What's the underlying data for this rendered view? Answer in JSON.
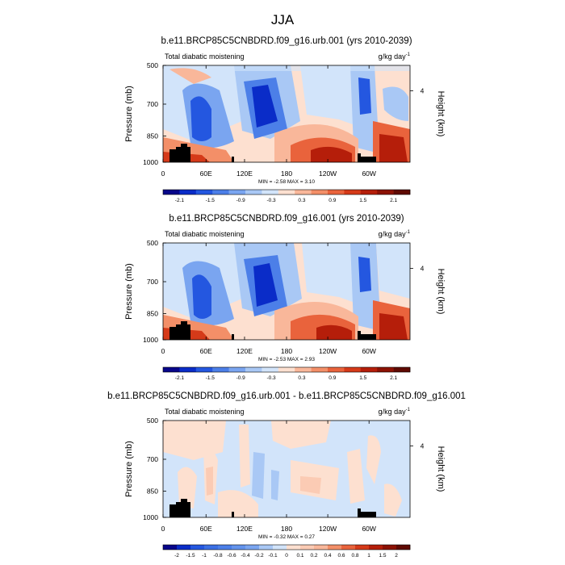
{
  "page_title": "JJA",
  "chart_data": [
    {
      "type": "heatmap",
      "title": "b.e11.BRCP85C5CNBDRD.f09_g16.urb.001 (yrs 2010-2039)",
      "subtitle_left": "Total diabatic moistening",
      "units": "g/kg day",
      "units_exp": "-1",
      "ylabel": "Pressure (mb)",
      "ylabel_right": "Height (km)",
      "x_ticks": [
        "0",
        "60E",
        "120E",
        "180",
        "120W",
        "60W"
      ],
      "y_ticks": [
        "500",
        "700",
        "850",
        "1000"
      ],
      "right_tick": "4",
      "stats": "MIN =  -2.58  MAX =  3.10",
      "min": -2.58,
      "max": 3.1,
      "colorbar_labels": [
        "-2.1",
        "-1.5",
        "-0.9",
        "-0.3",
        "0.3",
        "0.9",
        "1.5",
        "2.1"
      ],
      "colorbar_colors": [
        "#08068a",
        "#0a2cc8",
        "#2457e0",
        "#4c7fe8",
        "#7aa5f0",
        "#a9c8f5",
        "#d2e4fa",
        "#fde0d0",
        "#f9b79a",
        "#f38f68",
        "#e9633c",
        "#d53a19",
        "#b51e0a",
        "#8c1204",
        "#5f0a02"
      ]
    },
    {
      "type": "heatmap",
      "title": "b.e11.BRCP85C5CNBDRD.f09_g16.001 (yrs 2010-2039)",
      "subtitle_left": "Total diabatic moistening",
      "units": "g/kg day",
      "units_exp": "-1",
      "ylabel": "Pressure (mb)",
      "ylabel_right": "Height (km)",
      "x_ticks": [
        "0",
        "60E",
        "120E",
        "180",
        "120W",
        "60W"
      ],
      "y_ticks": [
        "500",
        "700",
        "850",
        "1000"
      ],
      "right_tick": "4",
      "stats": "MIN =  -2.53  MAX =  2.93",
      "min": -2.53,
      "max": 2.93,
      "colorbar_labels": [
        "-2.1",
        "-1.5",
        "-0.9",
        "-0.3",
        "0.3",
        "0.9",
        "1.5",
        "2.1"
      ],
      "colorbar_colors": [
        "#08068a",
        "#0a2cc8",
        "#2457e0",
        "#4c7fe8",
        "#7aa5f0",
        "#a9c8f5",
        "#d2e4fa",
        "#fde0d0",
        "#f9b79a",
        "#f38f68",
        "#e9633c",
        "#d53a19",
        "#b51e0a",
        "#8c1204",
        "#5f0a02"
      ]
    },
    {
      "type": "heatmap",
      "title": "b.e11.BRCP85C5CNBDRD.f09_g16.urb.001 - b.e11.BRCP85C5CNBDRD.f09_g16.001",
      "subtitle_left": "Total diabatic moistening",
      "units": "g/kg day",
      "units_exp": "-1",
      "ylabel": "Pressure (mb)",
      "ylabel_right": "Height (km)",
      "x_ticks": [
        "0",
        "60E",
        "120E",
        "180",
        "120W",
        "60W"
      ],
      "y_ticks": [
        "500",
        "700",
        "850",
        "1000"
      ],
      "right_tick": "4",
      "stats": "MIN =  -0.32  MAX =  0.27",
      "min": -0.32,
      "max": 0.27,
      "colorbar_labels": [
        "-2",
        "-1.5",
        "-1",
        "-0.8",
        "-0.6",
        "-0.4",
        "-0.2",
        "-0.1",
        "0",
        "0.1",
        "0.2",
        "0.4",
        "0.6",
        "0.8",
        "1",
        "1.5",
        "2"
      ],
      "colorbar_colors": [
        "#08068a",
        "#0a2cc8",
        "#2457e0",
        "#3b6fe4",
        "#4c7fe8",
        "#6393ec",
        "#7aa5f0",
        "#a9c8f5",
        "#d2e4fa",
        "#fde0d0",
        "#fbcbb4",
        "#f9b79a",
        "#f38f68",
        "#e9633c",
        "#d53a19",
        "#b51e0a",
        "#8c1204",
        "#5f0a02"
      ]
    }
  ]
}
